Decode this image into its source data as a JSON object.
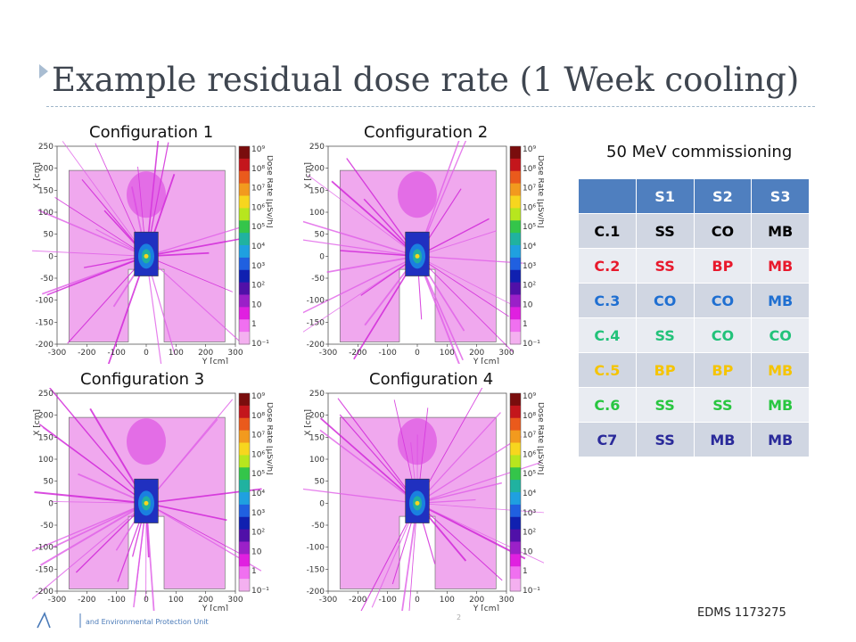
{
  "slide": {
    "title": "Example residual dose rate (1 Week cooling)",
    "subtitle": "50 MeV commissioning",
    "footer_ref": "EDMS 1173275",
    "footer_org": "and Environmental Protection Unit",
    "page_mark": "2"
  },
  "plots": [
    {
      "label": "Configuration 1"
    },
    {
      "label": "Configuration 2"
    },
    {
      "label": "Configuration 3"
    },
    {
      "label": "Configuration 4"
    }
  ],
  "plot_axes": {
    "x_title": "Y [cm]",
    "y_title": "X [cm]",
    "colorbar_title": "Dose Rate [µSv/h]",
    "x_ticks": [
      "-300",
      "-200",
      "-100",
      "0",
      "100",
      "200",
      "300"
    ],
    "y_ticks": [
      "250",
      "200",
      "150",
      "100",
      "50",
      "0",
      "-50",
      "-100",
      "-150",
      "-200"
    ],
    "colorbar_ticks": [
      "10⁹",
      "10⁸",
      "10⁷",
      "10⁶",
      "10⁵",
      "10⁴",
      "10³",
      "10²",
      "10",
      "1",
      "10⁻¹"
    ],
    "colorbar_colors": [
      "#7a0d0d",
      "#c4161c",
      "#ea5a1c",
      "#f29a1e",
      "#f7d61e",
      "#b7e61e",
      "#34c54a",
      "#20b2a0",
      "#1fa0e0",
      "#2060e0",
      "#1020b0",
      "#5010a8",
      "#9b20c8",
      "#e020e0",
      "#f070f0",
      "#f4b0f0"
    ]
  },
  "table": {
    "headers": [
      "",
      "S1",
      "S2",
      "S3"
    ],
    "rows": [
      {
        "cells": [
          "C.1",
          "SS",
          "CO",
          "MB"
        ],
        "color": "#000000"
      },
      {
        "cells": [
          "C.2",
          "SS",
          "BP",
          "MB"
        ],
        "color": "#e8192c"
      },
      {
        "cells": [
          "C.3",
          "CO",
          "CO",
          "MB"
        ],
        "color": "#1f6fd1"
      },
      {
        "cells": [
          "C.4",
          "SS",
          "CO",
          "CO"
        ],
        "color": "#22c27a"
      },
      {
        "cells": [
          "C.5",
          "BP",
          "BP",
          "MB"
        ],
        "color": "#f5c400"
      },
      {
        "cells": [
          "C.6",
          "SS",
          "SS",
          "MB"
        ],
        "color": "#28c640"
      },
      {
        "cells": [
          "C7",
          "SS",
          "MB",
          "MB"
        ],
        "color": "#2a2a9a"
      }
    ]
  }
}
